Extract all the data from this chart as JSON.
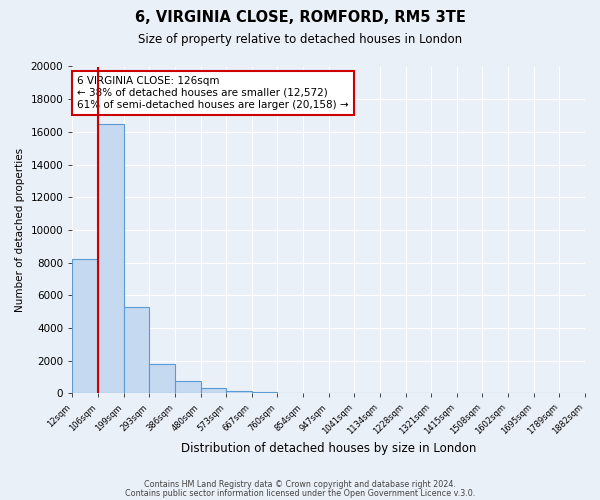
{
  "title": "6, VIRGINIA CLOSE, ROMFORD, RM5 3TE",
  "subtitle": "Size of property relative to detached houses in London",
  "xlabel": "Distribution of detached houses by size in London",
  "ylabel": "Number of detached properties",
  "bar_values": [
    8200,
    16500,
    5300,
    1800,
    750,
    300,
    150,
    100,
    50,
    0,
    0,
    0,
    0,
    0,
    0,
    0,
    0,
    0,
    0,
    0
  ],
  "bar_labels": [
    "12sqm",
    "106sqm",
    "199sqm",
    "293sqm",
    "386sqm",
    "480sqm",
    "573sqm",
    "667sqm",
    "760sqm",
    "854sqm",
    "947sqm",
    "1041sqm",
    "1134sqm",
    "1228sqm",
    "1321sqm",
    "1415sqm",
    "1508sqm",
    "1602sqm",
    "1695sqm",
    "1789sqm",
    "1882sqm"
  ],
  "ylim": [
    0,
    20000
  ],
  "yticks": [
    0,
    2000,
    4000,
    6000,
    8000,
    10000,
    12000,
    14000,
    16000,
    18000,
    20000
  ],
  "bar_color": "#c5d9f1",
  "bar_edge_color": "#5b9bd5",
  "property_size": "126sqm",
  "pct_smaller": 38,
  "num_smaller": 12572,
  "pct_larger": 61,
  "num_larger": 20158,
  "annotation_box_edge": "#cc0000",
  "footer1": "Contains HM Land Registry data © Crown copyright and database right 2024.",
  "footer2": "Contains public sector information licensed under the Open Government Licence v.3.0.",
  "bg_color": "#eaf0f8",
  "plot_bg_color": "#eaf0f8",
  "grid_color": "#ffffff",
  "red_line_color": "#cc0000"
}
